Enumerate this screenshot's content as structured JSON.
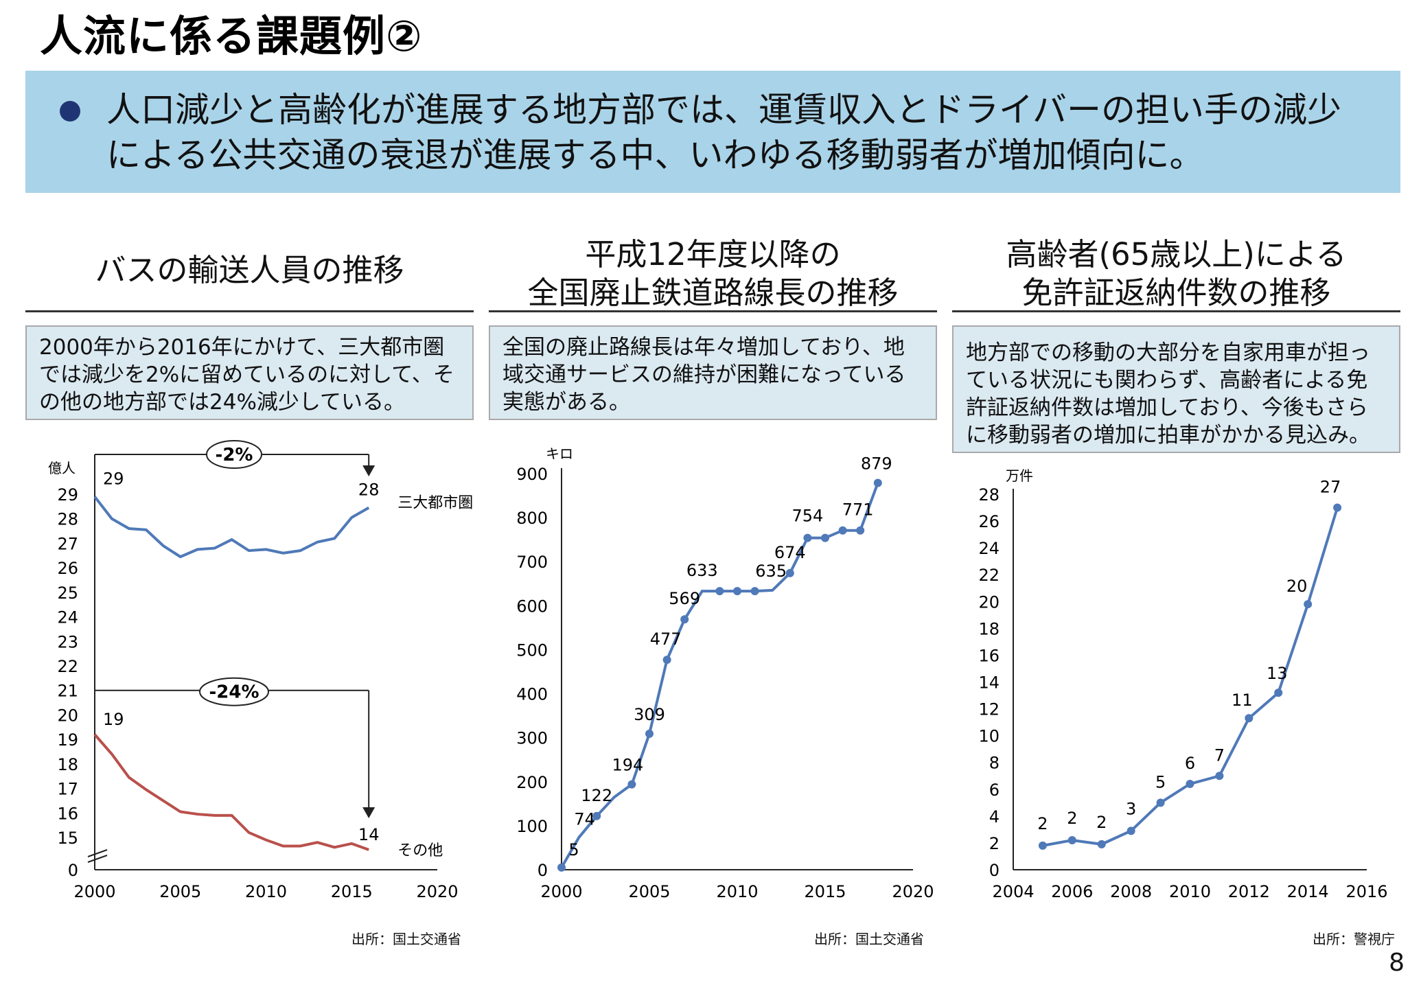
{
  "title": "人流に係る課題例②",
  "banner": {
    "text": "人口減少と高齢化が進展する地方部では、運賃収入とドライバーの担い手の減少による公共交通の衰退が進展する中、いわゆる移動弱者が増加傾向に。"
  },
  "panels": [
    {
      "title": "バスの輸送人員の推移",
      "desc": "2000年から2016年にかけて、三大都市圏では減少を2%に留めているのに対して、その他の地方部では24%減少している。",
      "source": "出所：国土交通省"
    },
    {
      "title_line1": "平成12年度以降の",
      "title_line2": "全国廃止鉄道路線長の推移",
      "desc": "全国の廃止路線長は年々増加しており、地域交通サービスの維持が困難になっている実態がある。",
      "source": "出所：国土交通省"
    },
    {
      "title_line1": "高齢者(65歳以上)による",
      "title_line2": "免許証返納件数の推移",
      "desc": "地方部での移動の大部分を自家用車が担っている状況にも関わらず、高齢者による免許証返納件数は増加しており、今後もさらに移動弱者の増加に拍車がかかる見込み。",
      "source": "出所：警視庁"
    }
  ],
  "page_number": "8",
  "colors": {
    "banner_bg": "#a9d3e8",
    "bullet": "#1f3573",
    "desc_bg": "#dbe9f1",
    "series_blue": "#4f79b8",
    "series_red": "#b9504b"
  },
  "chart_data": [
    {
      "type": "line",
      "ylabel": "億人",
      "xlim": [
        2000,
        2020
      ],
      "xticks": [
        2000,
        2005,
        2010,
        2015,
        2020
      ],
      "ylim": [
        0,
        29
      ],
      "yticks": [
        0,
        15,
        16,
        17,
        18,
        19,
        20,
        21,
        22,
        23,
        24,
        25,
        26,
        27,
        28,
        29
      ],
      "axis_break": true,
      "series": [
        {
          "name": "三大都市圏",
          "color": "#4f79b8",
          "x": [
            2000,
            2001,
            2002,
            2003,
            2004,
            2005,
            2006,
            2007,
            2008,
            2009,
            2010,
            2011,
            2012,
            2013,
            2014,
            2015,
            2016
          ],
          "values": [
            28.9,
            28.0,
            27.6,
            27.55,
            26.9,
            26.45,
            26.75,
            26.8,
            27.15,
            26.7,
            26.75,
            26.6,
            26.7,
            27.05,
            27.2,
            28.05,
            28.45
          ],
          "start_label": "29",
          "end_label": "28"
        },
        {
          "name": "その他",
          "color": "#b9504b",
          "x": [
            2000,
            2001,
            2002,
            2003,
            2004,
            2005,
            2006,
            2007,
            2008,
            2009,
            2010,
            2011,
            2012,
            2013,
            2014,
            2015,
            2016
          ],
          "values": [
            19.2,
            18.4,
            17.45,
            16.95,
            16.5,
            16.05,
            15.95,
            15.9,
            15.9,
            15.2,
            14.9,
            14.65,
            14.65,
            14.8,
            14.6,
            14.75,
            14.5
          ],
          "start_label": "19",
          "end_label": "14"
        }
      ],
      "annotations": [
        {
          "text": "-2%",
          "from": 2000,
          "to": 2016,
          "level": 30.7
        },
        {
          "text": "-24%",
          "from": 2000,
          "to": 2016,
          "level": 21
        }
      ]
    },
    {
      "type": "line",
      "ylabel": "キロ",
      "xlim": [
        2000,
        2020
      ],
      "xticks": [
        2000,
        2005,
        2010,
        2015,
        2020
      ],
      "ylim": [
        0,
        900
      ],
      "yticks": [
        0,
        100,
        200,
        300,
        400,
        500,
        600,
        700,
        800,
        900
      ],
      "series": [
        {
          "color": "#4f79b8",
          "x": [
            2000,
            2001,
            2002,
            2003,
            2004,
            2005,
            2006,
            2007,
            2008,
            2009,
            2010,
            2011,
            2012,
            2013,
            2014,
            2015,
            2016,
            2017,
            2018
          ],
          "values": [
            5,
            74,
            122,
            165,
            194,
            309,
            477,
            569,
            633,
            633,
            633,
            633,
            635,
            674,
            754,
            754,
            771,
            771,
            879
          ],
          "markers": [
            true,
            false,
            true,
            false,
            true,
            true,
            true,
            true,
            false,
            true,
            true,
            true,
            false,
            true,
            true,
            true,
            true,
            true,
            true
          ],
          "data_labels": [
            "5",
            "74",
            "122",
            "",
            "194",
            "309",
            "477",
            "569",
            "633",
            "",
            "",
            "",
            "635",
            "674",
            "754",
            "",
            "771",
            "",
            "879"
          ]
        }
      ]
    },
    {
      "type": "line",
      "ylabel": "万件",
      "xlim": [
        2004,
        2016
      ],
      "xticks": [
        2004,
        2006,
        2008,
        2010,
        2012,
        2014,
        2016
      ],
      "ylim": [
        0,
        28
      ],
      "yticks": [
        0,
        2,
        4,
        6,
        8,
        10,
        12,
        14,
        16,
        18,
        20,
        22,
        24,
        26,
        28
      ],
      "series": [
        {
          "color": "#4f79b8",
          "x": [
            2005,
            2006,
            2007,
            2008,
            2009,
            2010,
            2011,
            2012,
            2013,
            2014,
            2015
          ],
          "values": [
            1.8,
            2.2,
            1.9,
            2.9,
            5.0,
            6.4,
            7.0,
            11.3,
            13.2,
            19.8,
            27.0
          ],
          "data_labels": [
            "2",
            "2",
            "2",
            "3",
            "5",
            "6",
            "7",
            "11",
            "13",
            "20",
            "27"
          ]
        }
      ]
    }
  ]
}
